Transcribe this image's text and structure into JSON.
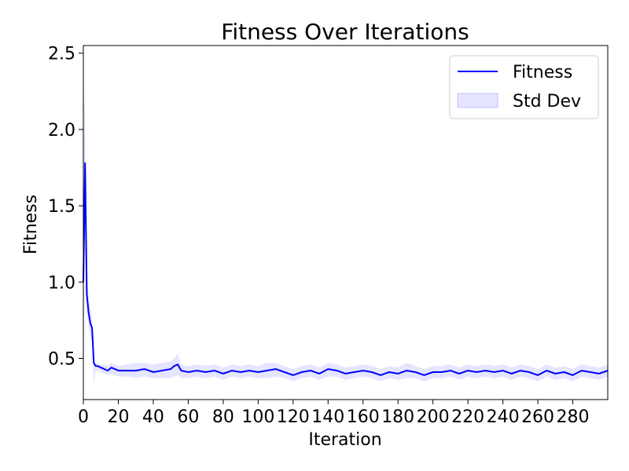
{
  "chart_data": {
    "type": "line",
    "title": "Fitness Over Iterations",
    "xlabel": "Iteration",
    "ylabel": "Fitness",
    "xlim": [
      0,
      300
    ],
    "ylim": [
      0.23,
      2.55
    ],
    "xticks": [
      0,
      20,
      40,
      60,
      80,
      100,
      120,
      140,
      160,
      180,
      200,
      220,
      240,
      260,
      280
    ],
    "yticks": [
      0.5,
      1.0,
      1.5,
      2.0,
      2.5
    ],
    "xtick_labels": [
      "0",
      "20",
      "40",
      "60",
      "80",
      "100",
      "120",
      "140",
      "160",
      "180",
      "200",
      "220",
      "240",
      "260",
      "280"
    ],
    "ytick_labels": [
      "0.5",
      "1.0",
      "1.5",
      "2.0",
      "2.5"
    ],
    "grid": false,
    "legend_position": "top-right",
    "series": [
      {
        "name": "Fitness",
        "kind": "line",
        "color": "#0000ff",
        "x": [
          0,
          1,
          2,
          3,
          4,
          5,
          6,
          7,
          8,
          10,
          12,
          14,
          16,
          18,
          20,
          25,
          30,
          35,
          40,
          45,
          50,
          52,
          54,
          56,
          60,
          65,
          70,
          75,
          80,
          85,
          90,
          95,
          100,
          105,
          110,
          115,
          120,
          125,
          130,
          135,
          140,
          145,
          150,
          155,
          160,
          165,
          170,
          175,
          180,
          185,
          190,
          195,
          200,
          205,
          210,
          215,
          220,
          225,
          230,
          235,
          240,
          245,
          250,
          255,
          260,
          265,
          270,
          275,
          280,
          285,
          290,
          295,
          300
        ],
        "y": [
          1.0,
          1.78,
          0.92,
          0.8,
          0.73,
          0.7,
          0.47,
          0.45,
          0.45,
          0.44,
          0.43,
          0.42,
          0.44,
          0.43,
          0.42,
          0.42,
          0.42,
          0.43,
          0.41,
          0.42,
          0.43,
          0.45,
          0.46,
          0.42,
          0.41,
          0.42,
          0.41,
          0.42,
          0.4,
          0.42,
          0.41,
          0.42,
          0.41,
          0.42,
          0.43,
          0.41,
          0.39,
          0.41,
          0.42,
          0.4,
          0.43,
          0.42,
          0.4,
          0.41,
          0.42,
          0.41,
          0.39,
          0.41,
          0.4,
          0.42,
          0.41,
          0.39,
          0.41,
          0.41,
          0.42,
          0.4,
          0.42,
          0.41,
          0.42,
          0.41,
          0.42,
          0.4,
          0.42,
          0.41,
          0.39,
          0.42,
          0.4,
          0.41,
          0.39,
          0.42,
          0.41,
          0.4,
          0.42
        ]
      },
      {
        "name": "Std Dev",
        "kind": "band",
        "color": "#0000ff",
        "fill_opacity": 0.1,
        "x": [
          0,
          1,
          2,
          3,
          4,
          5,
          6,
          7,
          8,
          10,
          12,
          14,
          16,
          18,
          20,
          25,
          30,
          35,
          40,
          45,
          50,
          52,
          54,
          56,
          60,
          65,
          70,
          75,
          80,
          85,
          90,
          95,
          100,
          105,
          110,
          115,
          120,
          125,
          130,
          135,
          140,
          145,
          150,
          155,
          160,
          165,
          170,
          175,
          180,
          185,
          190,
          195,
          200,
          205,
          210,
          215,
          220,
          225,
          230,
          235,
          240,
          245,
          250,
          255,
          260,
          265,
          270,
          275,
          280,
          285,
          290,
          295,
          300
        ],
        "upper": [
          2.3,
          2.1,
          1.05,
          0.9,
          0.82,
          0.78,
          0.5,
          0.47,
          0.47,
          0.46,
          0.46,
          0.45,
          0.47,
          0.46,
          0.45,
          0.46,
          0.47,
          0.47,
          0.46,
          0.47,
          0.48,
          0.5,
          0.53,
          0.46,
          0.45,
          0.46,
          0.45,
          0.46,
          0.44,
          0.46,
          0.45,
          0.46,
          0.45,
          0.47,
          0.47,
          0.45,
          0.43,
          0.45,
          0.46,
          0.44,
          0.47,
          0.46,
          0.44,
          0.45,
          0.46,
          0.45,
          0.43,
          0.45,
          0.44,
          0.47,
          0.45,
          0.43,
          0.45,
          0.45,
          0.46,
          0.44,
          0.46,
          0.45,
          0.46,
          0.45,
          0.46,
          0.44,
          0.46,
          0.45,
          0.43,
          0.46,
          0.44,
          0.45,
          0.43,
          0.46,
          0.45,
          0.44,
          0.46
        ],
        "lower": [
          0.2,
          1.45,
          0.8,
          0.7,
          0.65,
          0.6,
          0.33,
          0.42,
          0.42,
          0.41,
          0.4,
          0.39,
          0.4,
          0.39,
          0.38,
          0.38,
          0.37,
          0.38,
          0.37,
          0.37,
          0.37,
          0.38,
          0.39,
          0.37,
          0.37,
          0.38,
          0.37,
          0.38,
          0.36,
          0.38,
          0.37,
          0.38,
          0.37,
          0.37,
          0.38,
          0.37,
          0.35,
          0.37,
          0.38,
          0.36,
          0.38,
          0.38,
          0.36,
          0.37,
          0.38,
          0.37,
          0.35,
          0.37,
          0.36,
          0.37,
          0.37,
          0.35,
          0.37,
          0.37,
          0.38,
          0.36,
          0.38,
          0.37,
          0.38,
          0.37,
          0.38,
          0.36,
          0.38,
          0.37,
          0.35,
          0.38,
          0.36,
          0.37,
          0.35,
          0.38,
          0.37,
          0.36,
          0.38
        ]
      }
    ],
    "legend": [
      {
        "label": "Fitness",
        "kind": "line",
        "color": "#0000ff"
      },
      {
        "label": "Std Dev",
        "kind": "band",
        "color": "#0000ff"
      }
    ]
  }
}
